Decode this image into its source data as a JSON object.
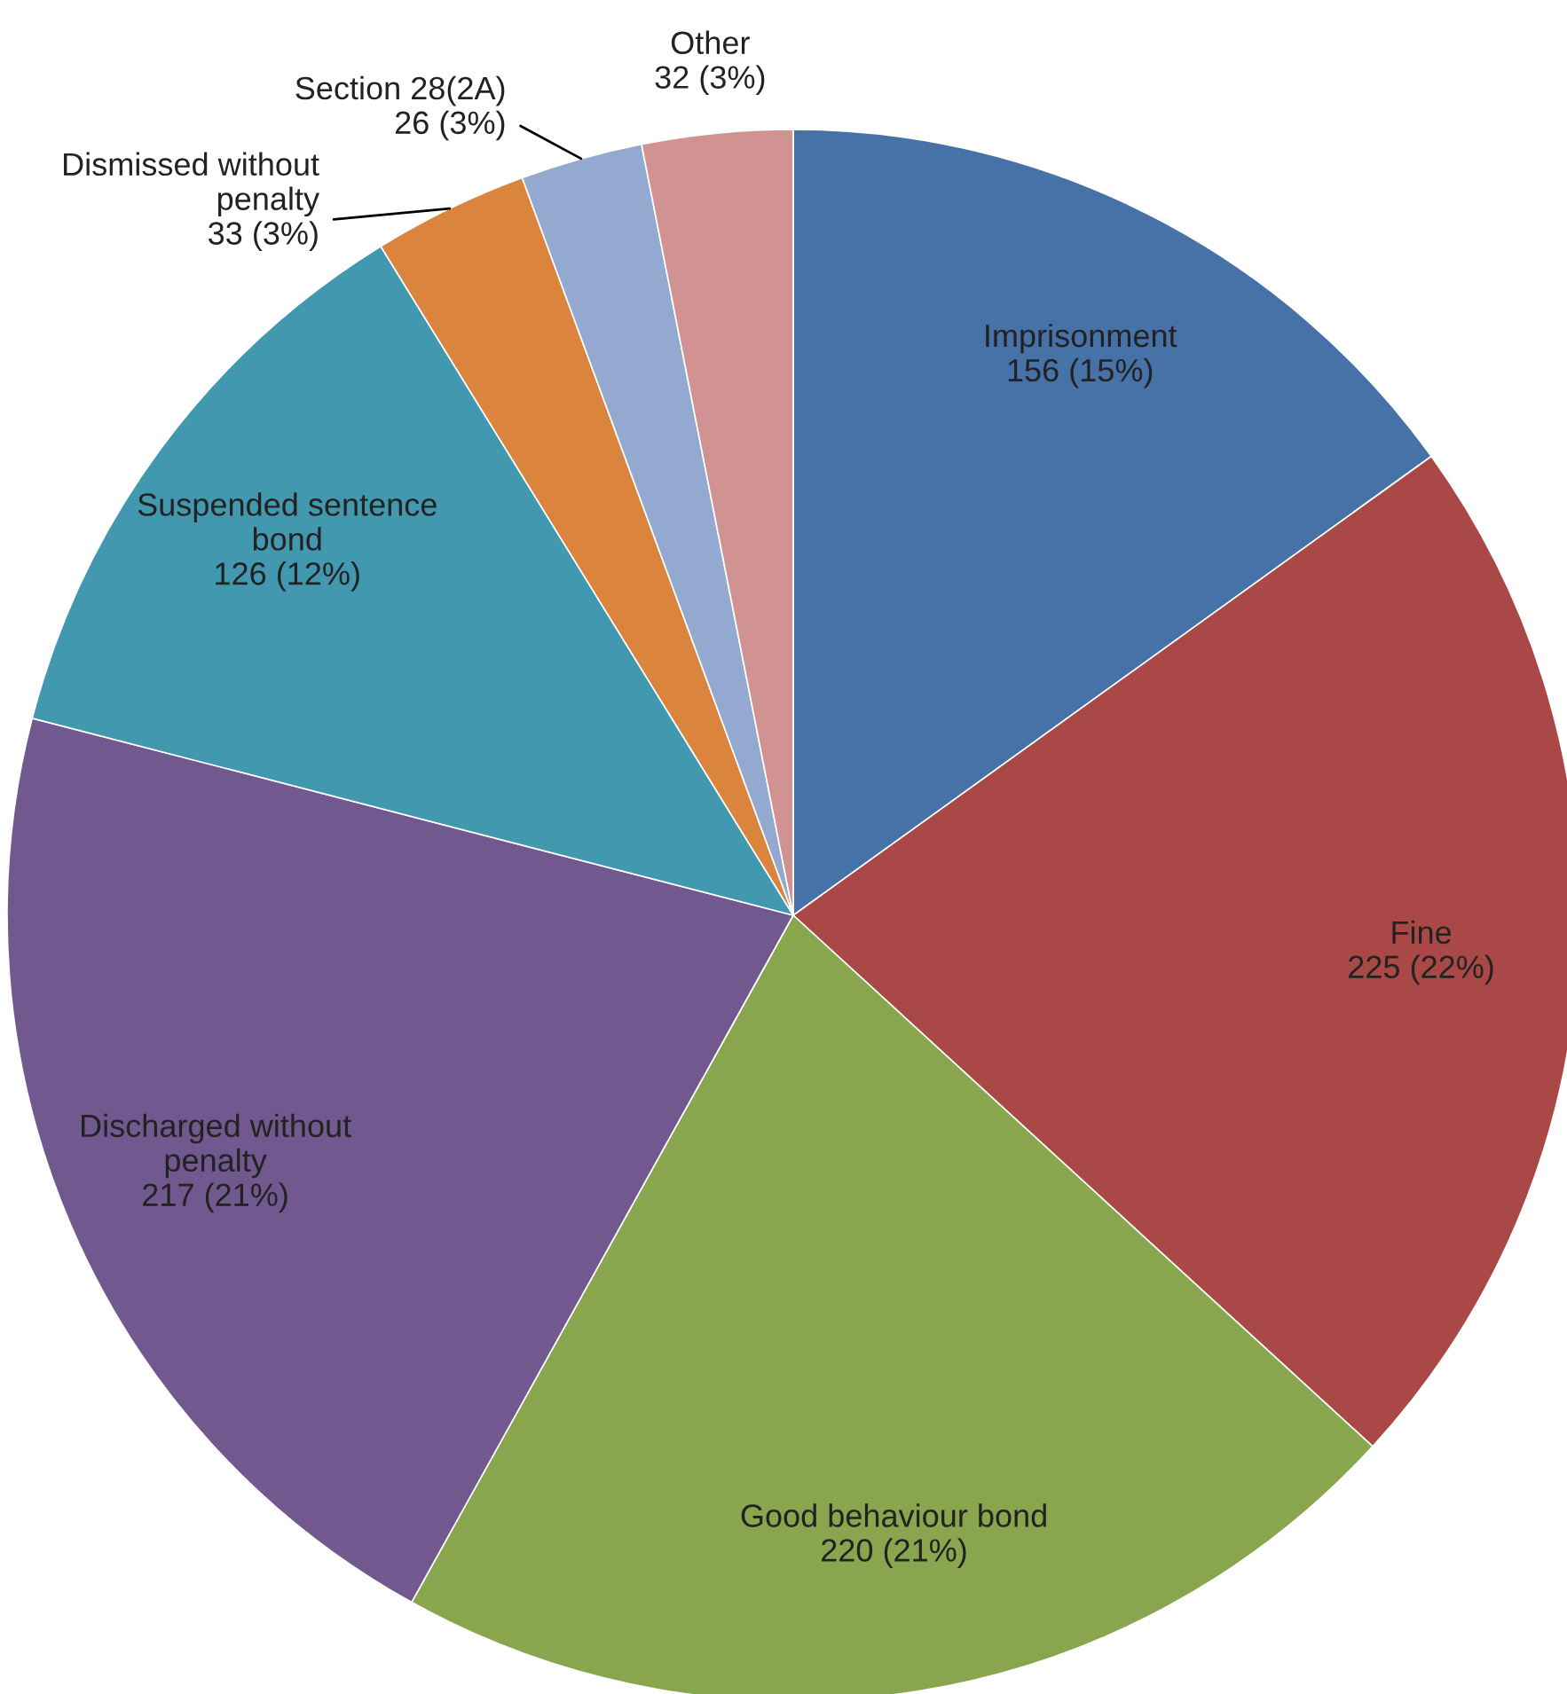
{
  "chart_data": {
    "type": "pie",
    "categories": [
      "Imprisonment",
      "Fine",
      "Good behaviour bond",
      "Discharged without\npenalty",
      "Suspended sentence\nbond",
      "Dismissed without\npenalty",
      "Section 28(2A)",
      "Other"
    ],
    "values": [
      156,
      225,
      220,
      217,
      126,
      33,
      26,
      32
    ],
    "value_labels": [
      "156 (15%)",
      "225 (22%)",
      "220 (21%)",
      "217 (21%)",
      "126 (12%)",
      "33 (3%)",
      "26 (3%)",
      "32 (3%)"
    ],
    "colors": [
      "#4672a8",
      "#a94846",
      "#89a54e",
      "#71588f",
      "#4298af",
      "#db843d",
      "#93a9cf",
      "#d19392"
    ],
    "legend": false
  }
}
